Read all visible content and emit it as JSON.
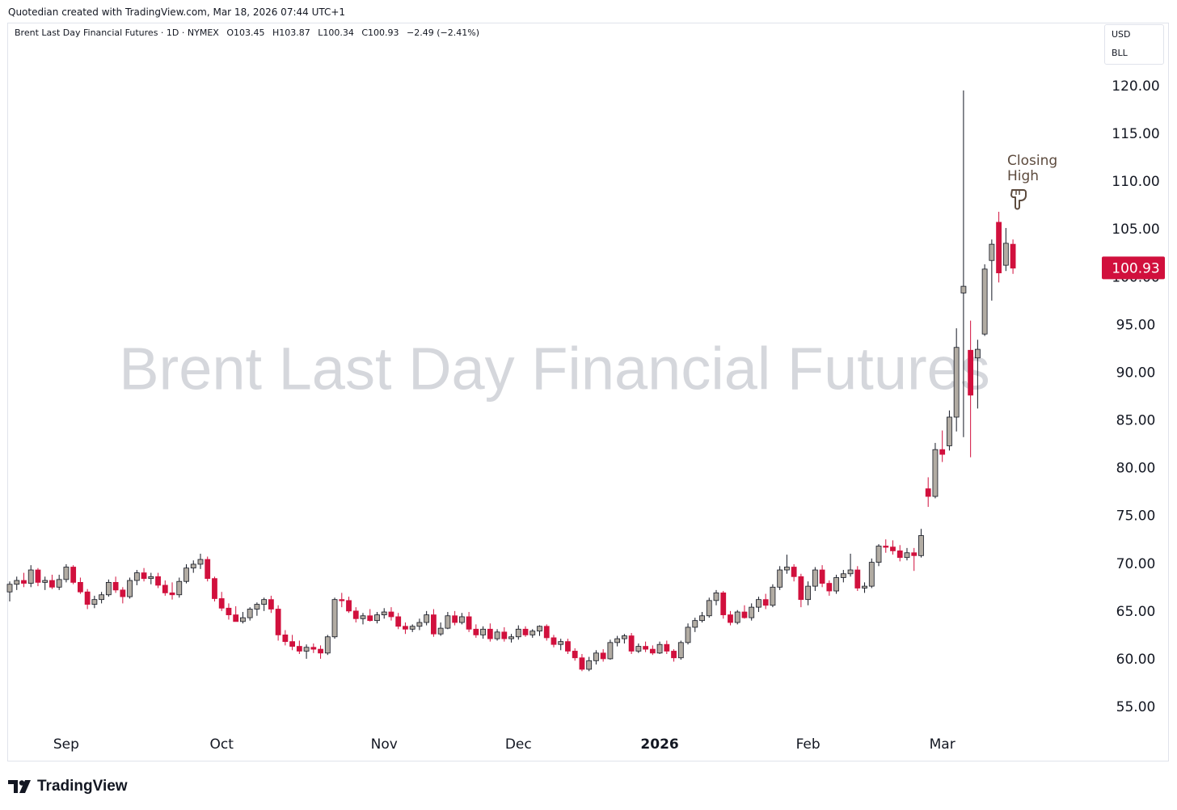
{
  "credit": "Quotedian created with TradingView.com, Mar 18, 2026 07:44 UTC+1",
  "legend": {
    "symbol": "Brent Last Day Financial Futures · 1D · NYMEX",
    "open": "O103.45",
    "high": "H103.87",
    "low": "L100.34",
    "close": "C100.93",
    "change": "−2.49 (−2.41%)"
  },
  "currency": "USD",
  "unit": "BLL",
  "watermark": "Brent Last Day Financial Futures",
  "footer_brand": "TradingView",
  "annotation": {
    "text_line1": "Closing",
    "text_line2": "High",
    "icon": "pointing-down-hand-icon"
  },
  "colors": {
    "up": "#b2aca3",
    "down": "#d1103d",
    "wick": "#131722",
    "price_tag": "#d1103d",
    "watermark": "#d5d7dc",
    "annotation": "#5d4b3e"
  },
  "chart_data": {
    "type": "candlestick",
    "last_price": 100.93,
    "last_price_label": "100.93",
    "ylim": [
      52,
      123
    ],
    "y_ticks": [
      120,
      115,
      110,
      105,
      100,
      95,
      90,
      85,
      80,
      75,
      70,
      65,
      60,
      55
    ],
    "y_tick_labels": [
      "120.00",
      "115.00",
      "110.00",
      "105.00",
      "100.00",
      "95.00",
      "90.00",
      "85.00",
      "80.00",
      "75.00",
      "70.00",
      "65.00",
      "60.00",
      "55.00"
    ],
    "x_labels": [
      {
        "label": "Sep",
        "index": 8,
        "bold": false
      },
      {
        "label": "Oct",
        "index": 30,
        "bold": false
      },
      {
        "label": "Nov",
        "index": 53,
        "bold": false
      },
      {
        "label": "Dec",
        "index": 72,
        "bold": false
      },
      {
        "label": "2026",
        "index": 92,
        "bold": true
      },
      {
        "label": "Feb",
        "index": 113,
        "bold": false
      },
      {
        "label": "Mar",
        "index": 132,
        "bold": false
      }
    ],
    "ohlc": [
      [
        67.0,
        68.1,
        66.0,
        67.8
      ],
      [
        67.8,
        68.6,
        67.2,
        68.2
      ],
      [
        68.2,
        69.0,
        67.5,
        67.9
      ],
      [
        67.9,
        69.8,
        67.5,
        69.3
      ],
      [
        69.3,
        69.5,
        67.6,
        68.0
      ],
      [
        68.0,
        68.6,
        67.2,
        68.2
      ],
      [
        68.2,
        68.8,
        67.3,
        67.5
      ],
      [
        67.5,
        68.8,
        67.2,
        68.3
      ],
      [
        68.3,
        69.9,
        68.0,
        69.6
      ],
      [
        69.6,
        69.8,
        67.8,
        68.0
      ],
      [
        68.0,
        68.5,
        66.8,
        67.0
      ],
      [
        67.0,
        67.3,
        65.2,
        65.7
      ],
      [
        65.7,
        66.6,
        65.3,
        66.2
      ],
      [
        66.2,
        67.0,
        65.8,
        66.7
      ],
      [
        66.7,
        68.3,
        66.5,
        68.0
      ],
      [
        68.0,
        68.6,
        66.9,
        67.2
      ],
      [
        67.2,
        67.5,
        65.8,
        66.5
      ],
      [
        66.5,
        68.5,
        66.3,
        68.2
      ],
      [
        68.2,
        69.3,
        67.7,
        69.0
      ],
      [
        69.0,
        69.5,
        68.1,
        68.4
      ],
      [
        68.4,
        69.0,
        67.8,
        68.6
      ],
      [
        68.6,
        69.0,
        67.4,
        67.7
      ],
      [
        67.7,
        68.2,
        66.6,
        66.9
      ],
      [
        66.9,
        68.0,
        66.2,
        66.7
      ],
      [
        66.7,
        68.5,
        66.4,
        68.1
      ],
      [
        68.1,
        69.9,
        67.9,
        69.5
      ],
      [
        69.5,
        70.3,
        69.0,
        69.9
      ],
      [
        69.9,
        71.0,
        69.4,
        70.4
      ],
      [
        70.4,
        70.7,
        68.1,
        68.4
      ],
      [
        68.4,
        68.6,
        66.0,
        66.3
      ],
      [
        66.3,
        67.0,
        65.0,
        65.3
      ],
      [
        65.3,
        65.8,
        64.1,
        64.6
      ],
      [
        64.6,
        65.5,
        63.9,
        63.9
      ],
      [
        63.9,
        64.9,
        63.7,
        64.3
      ],
      [
        64.3,
        65.4,
        64.0,
        65.2
      ],
      [
        65.2,
        65.9,
        64.5,
        65.7
      ],
      [
        65.7,
        66.4,
        65.0,
        66.2
      ],
      [
        66.2,
        66.6,
        64.8,
        65.2
      ],
      [
        65.2,
        65.6,
        61.9,
        62.5
      ],
      [
        62.5,
        63.0,
        61.4,
        61.8
      ],
      [
        61.8,
        62.5,
        60.9,
        61.3
      ],
      [
        61.3,
        61.9,
        60.5,
        60.8
      ],
      [
        60.8,
        61.5,
        60.0,
        61.2
      ],
      [
        61.2,
        61.6,
        60.6,
        61.0
      ],
      [
        61.0,
        61.4,
        60.0,
        60.6
      ],
      [
        60.6,
        62.5,
        60.4,
        62.3
      ],
      [
        62.3,
        66.4,
        62.1,
        66.2
      ],
      [
        66.2,
        66.9,
        65.4,
        66.1
      ],
      [
        66.1,
        66.5,
        64.8,
        65.0
      ],
      [
        65.0,
        65.4,
        63.8,
        64.2
      ],
      [
        64.2,
        64.8,
        63.6,
        64.5
      ],
      [
        64.5,
        65.2,
        63.9,
        64.0
      ],
      [
        64.0,
        64.9,
        63.7,
        64.6
      ],
      [
        64.6,
        65.3,
        64.2,
        64.9
      ],
      [
        64.9,
        65.4,
        64.0,
        64.4
      ],
      [
        64.4,
        64.8,
        63.1,
        63.4
      ],
      [
        63.4,
        63.8,
        62.6,
        63.1
      ],
      [
        63.1,
        63.6,
        62.8,
        63.4
      ],
      [
        63.4,
        64.2,
        63.0,
        63.8
      ],
      [
        63.8,
        65.0,
        63.5,
        64.6
      ],
      [
        64.6,
        65.2,
        62.3,
        62.6
      ],
      [
        62.6,
        63.8,
        62.4,
        63.2
      ],
      [
        63.2,
        64.9,
        63.1,
        64.5
      ],
      [
        64.5,
        65.0,
        63.5,
        63.8
      ],
      [
        63.8,
        64.8,
        63.6,
        64.4
      ],
      [
        64.4,
        64.9,
        62.8,
        63.1
      ],
      [
        63.1,
        63.6,
        62.2,
        62.5
      ],
      [
        62.5,
        63.4,
        62.1,
        63.1
      ],
      [
        63.1,
        63.7,
        61.8,
        62.1
      ],
      [
        62.1,
        63.1,
        61.9,
        62.8
      ],
      [
        62.8,
        63.3,
        61.8,
        62.1
      ],
      [
        62.1,
        62.6,
        61.7,
        62.3
      ],
      [
        62.3,
        63.5,
        62.0,
        63.1
      ],
      [
        63.1,
        63.4,
        62.3,
        62.5
      ],
      [
        62.5,
        63.1,
        62.2,
        62.9
      ],
      [
        62.9,
        63.5,
        62.4,
        63.4
      ],
      [
        63.4,
        63.6,
        61.9,
        62.2
      ],
      [
        62.2,
        62.5,
        61.2,
        61.5
      ],
      [
        61.5,
        62.1,
        60.9,
        61.8
      ],
      [
        61.8,
        62.1,
        60.5,
        60.8
      ],
      [
        60.8,
        61.1,
        59.8,
        60.1
      ],
      [
        60.1,
        60.5,
        58.7,
        58.9
      ],
      [
        58.9,
        60.2,
        58.7,
        59.8
      ],
      [
        59.8,
        60.9,
        59.4,
        60.6
      ],
      [
        60.6,
        61.0,
        59.7,
        60.0
      ],
      [
        60.0,
        62.0,
        59.9,
        61.7
      ],
      [
        61.7,
        62.4,
        61.3,
        62.1
      ],
      [
        62.1,
        62.6,
        61.6,
        62.4
      ],
      [
        62.4,
        62.7,
        60.5,
        60.8
      ],
      [
        60.8,
        61.6,
        60.6,
        61.3
      ],
      [
        61.3,
        61.8,
        60.7,
        61.0
      ],
      [
        61.0,
        61.4,
        60.4,
        60.6
      ],
      [
        60.6,
        61.8,
        60.5,
        61.5
      ],
      [
        61.5,
        61.9,
        60.5,
        60.8
      ],
      [
        60.8,
        61.0,
        59.7,
        60.1
      ],
      [
        60.1,
        61.9,
        59.9,
        61.7
      ],
      [
        61.7,
        63.7,
        61.5,
        63.3
      ],
      [
        63.3,
        64.3,
        62.8,
        64.0
      ],
      [
        64.0,
        64.9,
        63.8,
        64.5
      ],
      [
        64.5,
        66.4,
        64.3,
        66.1
      ],
      [
        66.1,
        67.2,
        65.6,
        66.9
      ],
      [
        66.9,
        67.1,
        64.2,
        64.6
      ],
      [
        64.6,
        65.0,
        63.5,
        63.8
      ],
      [
        63.8,
        65.1,
        63.6,
        64.9
      ],
      [
        64.9,
        65.6,
        64.2,
        64.3
      ],
      [
        64.3,
        65.8,
        64.0,
        65.4
      ],
      [
        65.4,
        66.5,
        64.9,
        66.2
      ],
      [
        66.2,
        66.8,
        65.2,
        65.6
      ],
      [
        65.6,
        67.8,
        65.4,
        67.5
      ],
      [
        67.5,
        69.7,
        67.2,
        69.3
      ],
      [
        69.3,
        70.9,
        68.9,
        69.6
      ],
      [
        69.6,
        69.9,
        68.1,
        68.6
      ],
      [
        68.6,
        68.9,
        65.4,
        66.2
      ],
      [
        66.2,
        68.1,
        65.6,
        67.6
      ],
      [
        67.6,
        69.6,
        67.1,
        69.3
      ],
      [
        69.3,
        69.8,
        67.5,
        67.9
      ],
      [
        67.9,
        68.2,
        66.6,
        67.1
      ],
      [
        67.1,
        68.8,
        66.8,
        68.5
      ],
      [
        68.5,
        69.3,
        68.0,
        68.9
      ],
      [
        68.9,
        71.0,
        68.6,
        69.3
      ],
      [
        69.3,
        69.7,
        67.1,
        67.4
      ],
      [
        67.4,
        68.0,
        66.9,
        67.6
      ],
      [
        67.6,
        70.5,
        67.4,
        70.1
      ],
      [
        70.1,
        72.0,
        69.7,
        71.8
      ],
      [
        71.8,
        72.5,
        71.1,
        71.7
      ],
      [
        71.7,
        72.4,
        70.9,
        71.3
      ],
      [
        71.3,
        71.9,
        70.2,
        70.6
      ],
      [
        70.6,
        71.6,
        70.3,
        71.1
      ],
      [
        71.1,
        71.6,
        69.2,
        70.8
      ],
      [
        70.8,
        73.6,
        70.6,
        72.9
      ],
      [
        77.8,
        79.0,
        75.9,
        77.0
      ],
      [
        77.0,
        82.6,
        76.8,
        81.9
      ],
      [
        81.9,
        83.9,
        80.6,
        81.4
      ],
      [
        82.3,
        86.0,
        81.8,
        85.3
      ],
      [
        85.3,
        94.6,
        83.8,
        92.6
      ],
      [
        98.3,
        119.5,
        83.2,
        99.0
      ],
      [
        92.3,
        95.4,
        81.1,
        87.6
      ],
      [
        91.5,
        93.4,
        86.2,
        92.4
      ],
      [
        94.0,
        101.3,
        93.8,
        100.8
      ],
      [
        101.7,
        103.9,
        97.5,
        103.4
      ],
      [
        105.7,
        106.8,
        99.4,
        100.4
      ],
      [
        101.2,
        105.1,
        100.6,
        103.5
      ],
      [
        103.4,
        103.9,
        100.3,
        100.9
      ]
    ]
  }
}
